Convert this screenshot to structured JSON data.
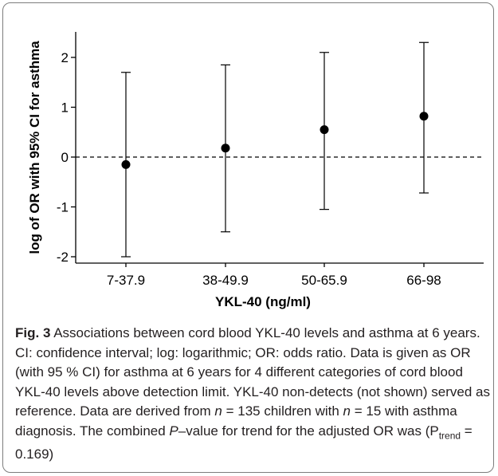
{
  "chart_data": {
    "type": "scatter",
    "categories": [
      "7-37.9",
      "38-49.9",
      "50-65.9",
      "66-98"
    ],
    "series": [
      {
        "values": [
          -0.15,
          0.18,
          0.55,
          0.82
        ],
        "ci_lower": [
          -2.0,
          -1.5,
          -1.05,
          -0.72
        ],
        "ci_upper": [
          1.7,
          1.85,
          2.1,
          2.3
        ]
      }
    ],
    "reference_line": 0,
    "xlabel": "YKL-40 (ng/ml)",
    "ylabel": "log of OR with 95% CI for asthma",
    "yticks": [
      "-2",
      "-1",
      "0",
      "1",
      "2"
    ],
    "ylim": [
      -2.1,
      2.5
    ],
    "grid": false
  },
  "caption": {
    "fig_label": "Fig. 3",
    "text1": " Associations between cord blood YKL-40 levels and asthma at 6 years. CI: confidence interval; log: logarithmic; OR: odds ratio. Data is given as OR (with 95 % CI) for asthma at 6 years for 4 different categories of cord blood YKL-40 levels above detection limit. YKL-40 non-detects (not shown) served as reference. Data are derived from ",
    "n1": "n",
    "text2": " = 135 children with ",
    "n2": "n",
    "text3": " = 15 with asthma diagnosis. The combined ",
    "p": "P",
    "text4": "–value for trend for the adjusted OR was (P",
    "sub": "trend",
    "text5": " = 0.169)"
  }
}
